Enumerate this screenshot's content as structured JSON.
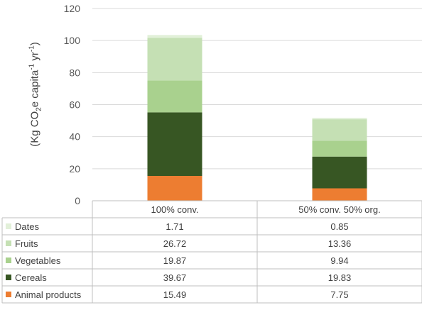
{
  "chart_data": {
    "type": "bar",
    "stacked": true,
    "categories": [
      "100% conv.",
      "50% conv. 50% org."
    ],
    "series": [
      {
        "name": "Animal products",
        "values": [
          15.49,
          7.75
        ],
        "color": "#ED7D31"
      },
      {
        "name": "Cereals",
        "values": [
          39.67,
          19.83
        ],
        "color": "#375623"
      },
      {
        "name": "Vegetables",
        "values": [
          19.87,
          9.94
        ],
        "color": "#A9D18E"
      },
      {
        "name": "Fruits",
        "values": [
          26.72,
          13.36
        ],
        "color": "#C5E0B4"
      },
      {
        "name": "Dates",
        "values": [
          1.71,
          0.85
        ],
        "color": "#E2F0D9"
      }
    ],
    "ylabel": {
      "open": "(Kg CO",
      "sub": "2",
      "mid1": "e capita",
      "sup1": "-1",
      "mid2": " yr",
      "sup2": "-1",
      "close": ")"
    },
    "yticks": [
      "0",
      "20",
      "40",
      "60",
      "80",
      "100",
      "120"
    ],
    "ylim": [
      0,
      120
    ],
    "grid": true,
    "legend": "data-table",
    "table_rows": [
      {
        "label": "Dates",
        "values": [
          "1.71",
          "0.85"
        ]
      },
      {
        "label": "Fruits",
        "values": [
          "26.72",
          "13.36"
        ]
      },
      {
        "label": "Vegetables",
        "values": [
          "19.87",
          "9.94"
        ]
      },
      {
        "label": "Cereals",
        "values": [
          "39.67",
          "19.83"
        ]
      },
      {
        "label": "Animal products",
        "values": [
          "15.49",
          "7.75"
        ]
      }
    ]
  }
}
